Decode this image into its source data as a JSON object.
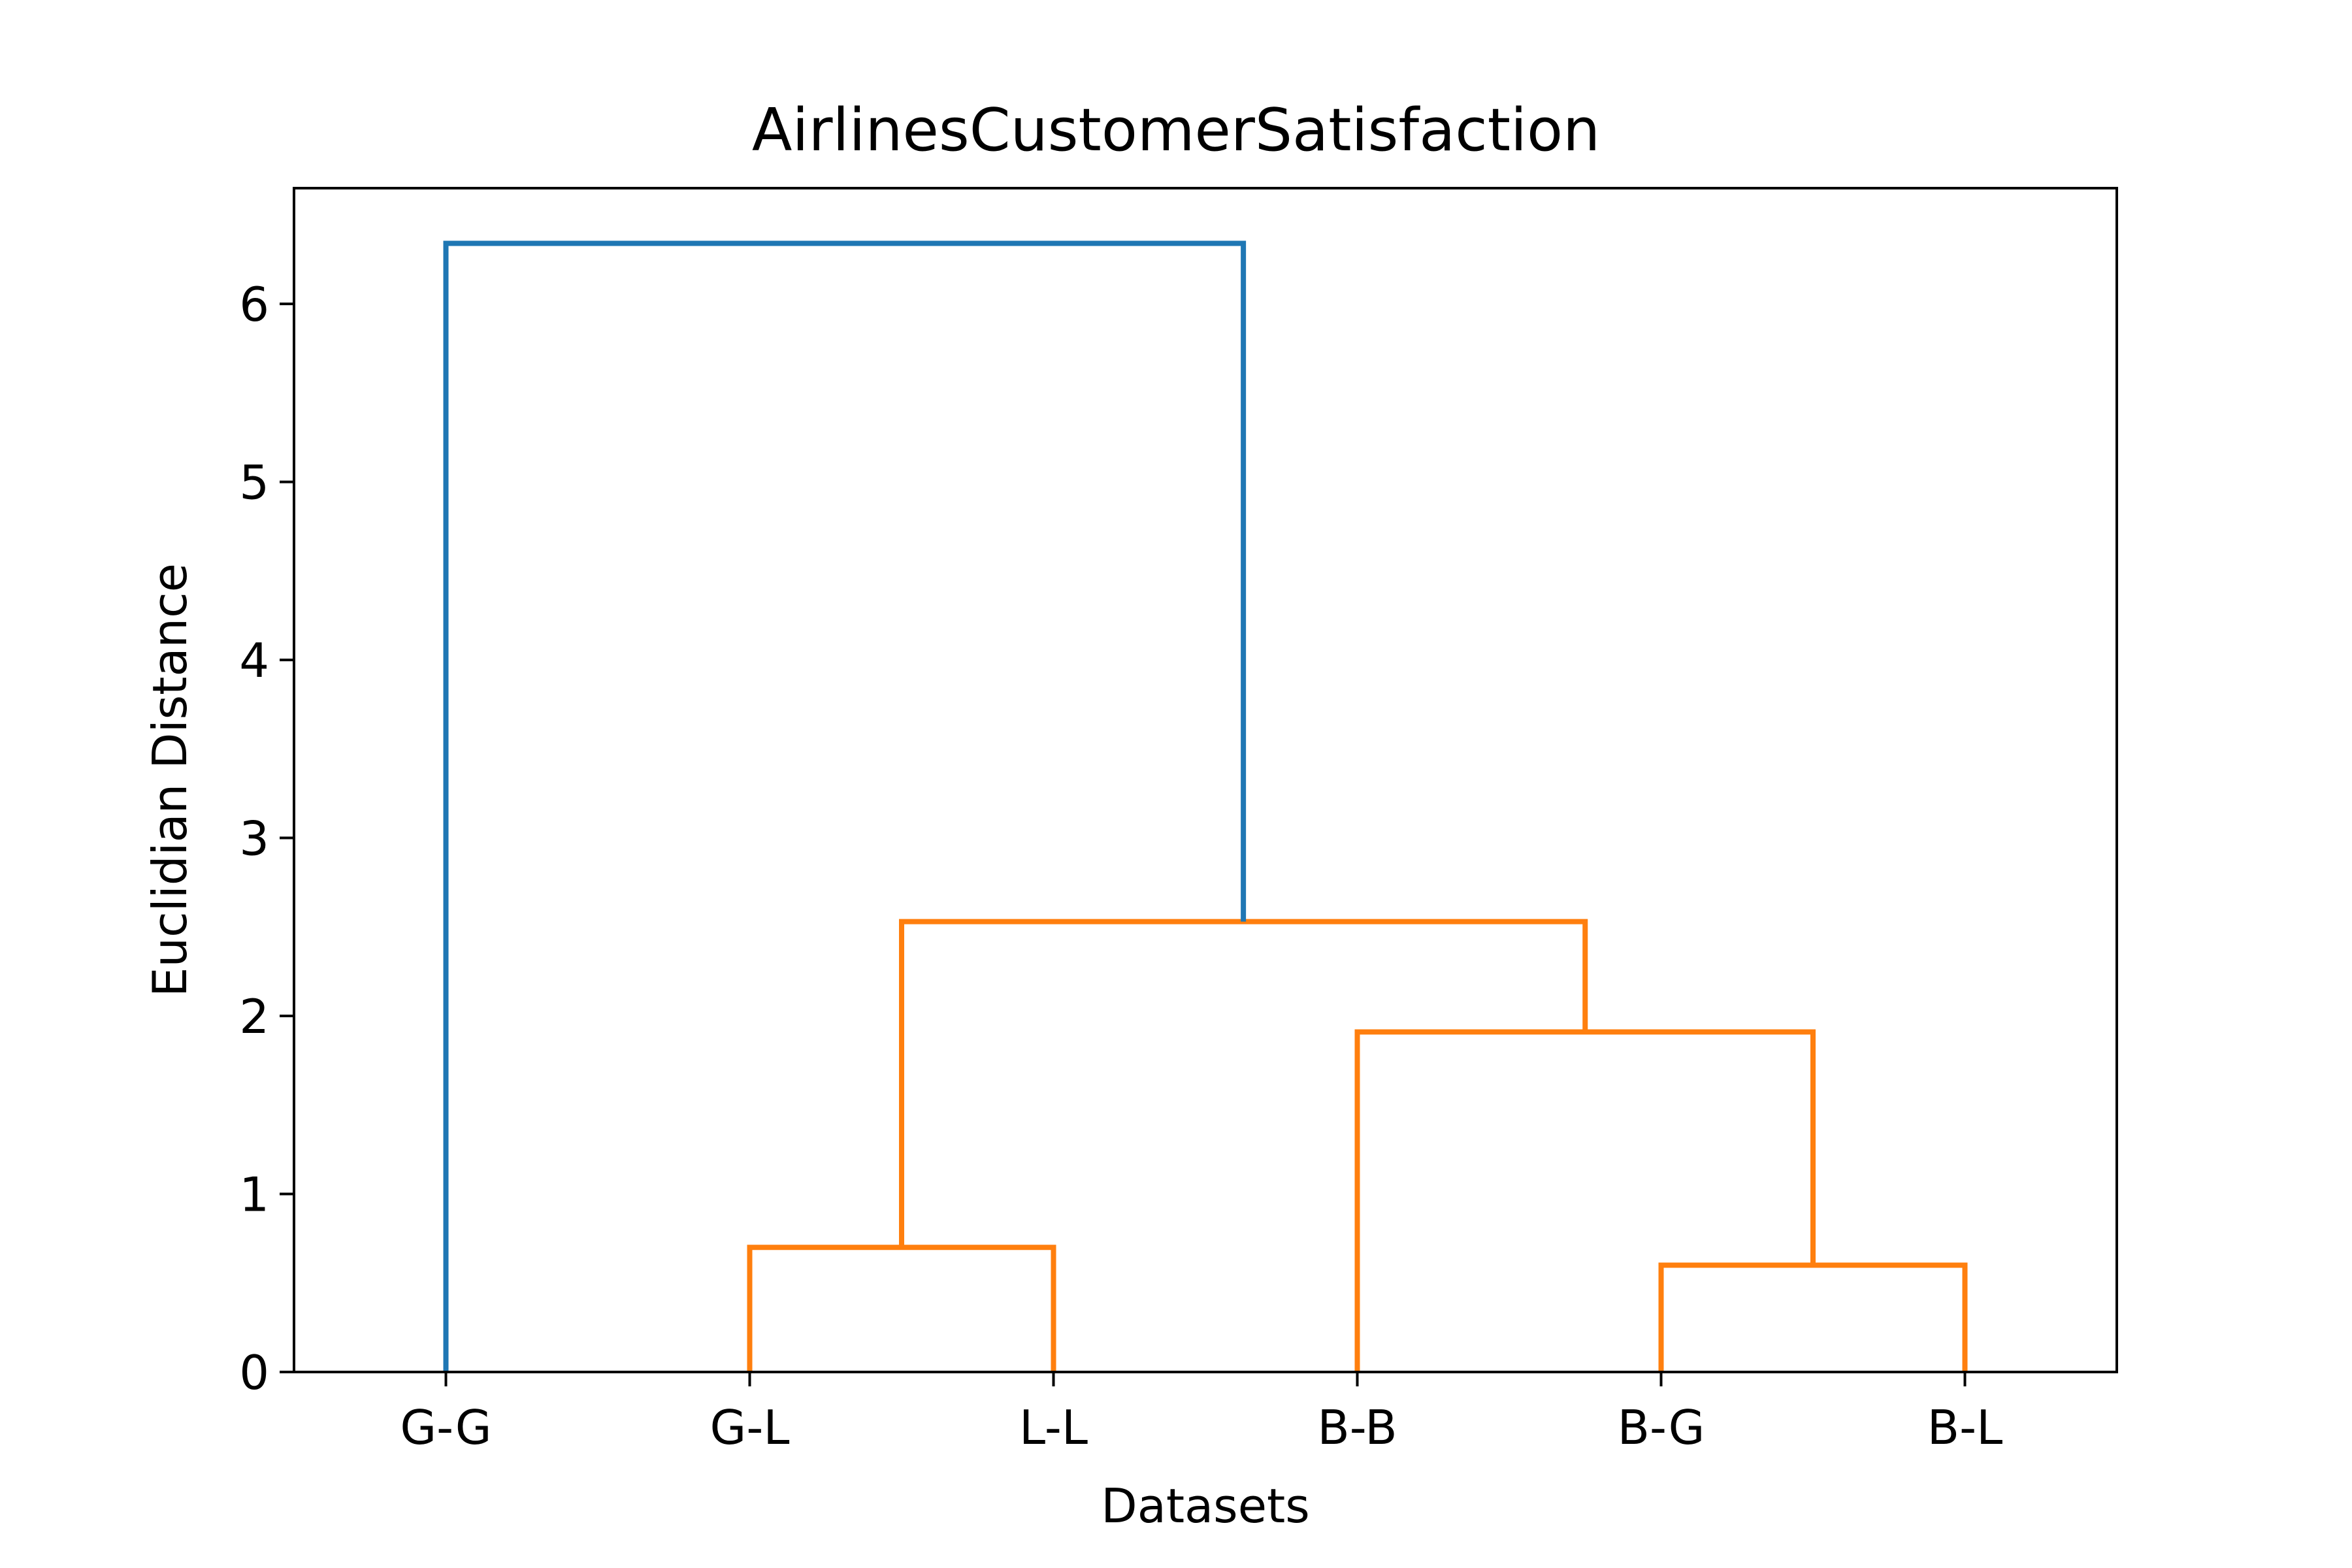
{
  "chart_data": {
    "type": "dendrogram",
    "title": "AirlinesCustomerSatisfaction",
    "xlabel": "Datasets",
    "ylabel": "Euclidian Distance",
    "ylim": [
      0,
      6.65
    ],
    "yticks": [
      0,
      1,
      2,
      3,
      4,
      5,
      6
    ],
    "leaves": [
      "G-G",
      "G-L",
      "L-L",
      "B-B",
      "B-G",
      "B-L"
    ],
    "colors": {
      "above_threshold": "#1f77b4",
      "cluster": "#ff7f0e"
    },
    "merges": [
      {
        "left": "G-L",
        "right": "L-L",
        "height": 0.7,
        "color": "#ff7f0e"
      },
      {
        "left": "B-G",
        "right": "B-L",
        "height": 0.6,
        "color": "#ff7f0e"
      },
      {
        "left": "B-B",
        "right": "B-G + B-L",
        "height": 1.91,
        "color": "#ff7f0e"
      },
      {
        "left": "G-L + L-L",
        "right": "B-B + B-G + B-L",
        "height": 2.53,
        "color": "#ff7f0e"
      },
      {
        "left": "G-G",
        "right": "G-L + L-L + B-B + B-G + B-L",
        "height": 6.34,
        "color": "#1f77b4"
      }
    ],
    "grid": false,
    "legend": "none"
  }
}
